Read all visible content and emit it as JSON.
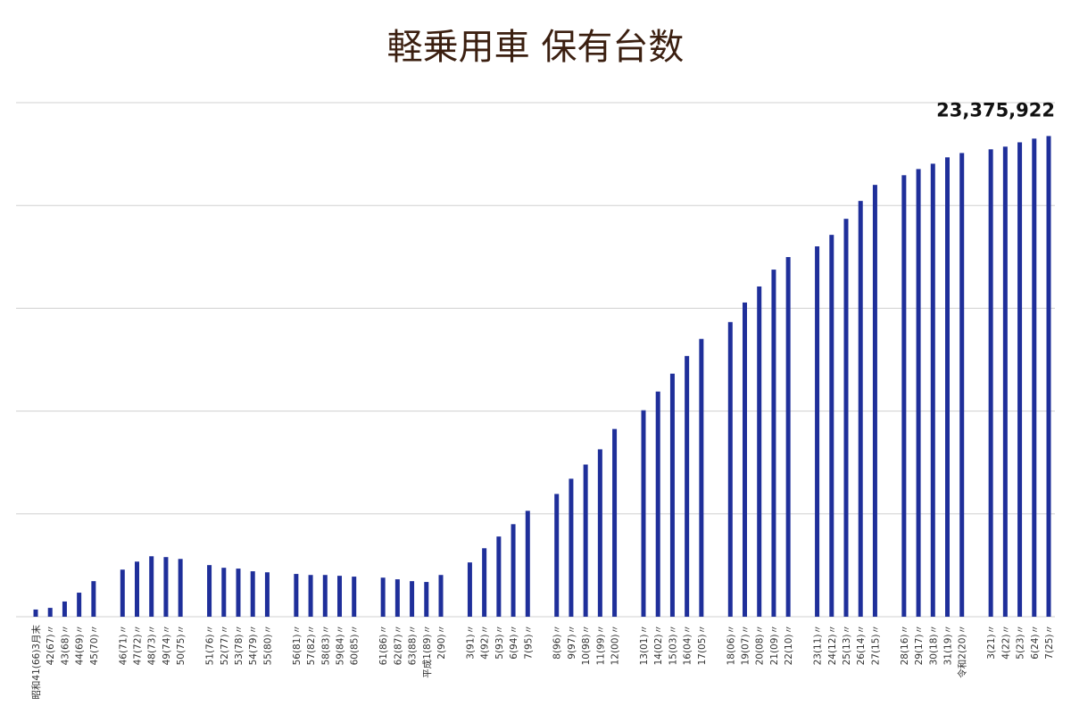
{
  "chart_data": {
    "type": "bar",
    "title": "軽乗用車 保有台数",
    "categories": [
      "昭和41(66)3月末",
      "42(67)〃",
      "43(68)〃",
      "44(69)〃",
      "45(70)〃",
      null,
      "46(71)〃",
      "47(72)〃",
      "48(73)〃",
      "49(74)〃",
      "50(75)〃",
      null,
      "51(76)〃",
      "52(77)〃",
      "53(78)〃",
      "54(79)〃",
      "55(80)〃",
      null,
      "56(81)〃",
      "57(82)〃",
      "58(83)〃",
      "59(84)〃",
      "60(85)〃",
      null,
      "61(86)〃",
      "62(87)〃",
      "63(88)〃",
      "平成1(89)〃",
      "2(90)〃",
      null,
      "3(91)〃",
      "4(92)〃",
      "5(93)〃",
      "6(94)〃",
      "7(95)〃",
      null,
      "8(96)〃",
      "9(97)〃",
      "10(98)〃",
      "11(99)〃",
      "12(00)〃",
      null,
      "13(01)〃",
      "14(02)〃",
      "15(03)〃",
      "16(04)〃",
      "17(05)〃",
      null,
      "18(06)〃",
      "19(07)〃",
      "20(08)〃",
      "21(09)〃",
      "22(10)〃",
      null,
      "23(11)〃",
      "24(12)〃",
      "25(13)〃",
      "26(14)〃",
      "27(15)〃",
      null,
      "28(16)〃",
      "29(17)〃",
      "30(18)〃",
      "31(19)〃",
      "令和2(20)〃",
      null,
      "3(21)〃",
      "4(22)〃",
      "5(23)〃",
      "6(24)〃",
      "7(25)〃"
    ],
    "values": [
      350000,
      430000,
      740000,
      1170000,
      1730000,
      null,
      2290000,
      2680000,
      2940000,
      2900000,
      2810000,
      null,
      2510000,
      2380000,
      2340000,
      2210000,
      2160000,
      null,
      2080000,
      2030000,
      2030000,
      1990000,
      1950000,
      null,
      1900000,
      1820000,
      1730000,
      1690000,
      2030000,
      null,
      2640000,
      3330000,
      3900000,
      4500000,
      5150000,
      null,
      5970000,
      6710000,
      7400000,
      8140000,
      9130000,
      null,
      10040000,
      10950000,
      11820000,
      12680000,
      13510000,
      null,
      14330000,
      15280000,
      16060000,
      16880000,
      17490000,
      null,
      18010000,
      18570000,
      19350000,
      20220000,
      21000000,
      null,
      21470000,
      21770000,
      22030000,
      22340000,
      22550000,
      null,
      22730000,
      22860000,
      23070000,
      23250000,
      23375922
    ],
    "value_labels": [
      null,
      null,
      null,
      null,
      null,
      null,
      null,
      null,
      null,
      null,
      null,
      null,
      null,
      null,
      null,
      null,
      null,
      null,
      null,
      null,
      null,
      null,
      null,
      null,
      null,
      null,
      null,
      null,
      null,
      null,
      null,
      null,
      null,
      null,
      null,
      null,
      null,
      null,
      null,
      null,
      null,
      null,
      null,
      null,
      null,
      null,
      null,
      null,
      null,
      null,
      null,
      null,
      null,
      null,
      null,
      null,
      null,
      null,
      null,
      null,
      null,
      null,
      null,
      null,
      null,
      null,
      null,
      null,
      null,
      null,
      "23,375,922"
    ],
    "color": "#1f2f9a",
    "ylim": [
      0,
      25000000
    ],
    "yticks": [
      0,
      5000000,
      10000000,
      15000000,
      20000000,
      25000000
    ],
    "grid": true,
    "show_ytick_labels": false
  }
}
